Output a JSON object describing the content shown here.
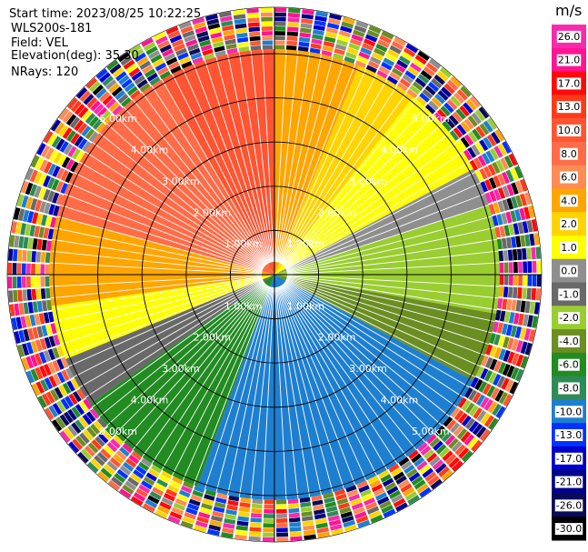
{
  "header": {
    "start_time": "Start time: 2023/08/25 10:22:25",
    "instrument": "WLS200s-181",
    "field": "Field: VEL",
    "elevation": "Elevation(deg): 35.30",
    "nrays": "NRays: 120"
  },
  "colorbar": {
    "unit": "m/s",
    "bins": [
      {
        "label": "26.0",
        "color": "#f72bac"
      },
      {
        "label": "21.0",
        "color": "#ff1493"
      },
      {
        "label": "17.0",
        "color": "#ff0a0a"
      },
      {
        "label": "13.0",
        "color": "#ff3a1a"
      },
      {
        "label": "10.0",
        "color": "#ff5533"
      },
      {
        "label": "8.0",
        "color": "#ff6c47"
      },
      {
        "label": "6.0",
        "color": "#ff8c55"
      },
      {
        "label": "4.0",
        "color": "#ffa500"
      },
      {
        "label": "2.0",
        "color": "#ffd400"
      },
      {
        "label": "1.0",
        "color": "#ffff00"
      },
      {
        "label": "0.0",
        "color": "#8f8f8f"
      },
      {
        "label": "-1.0",
        "color": "#696969"
      },
      {
        "label": "-2.0",
        "color": "#9acd32"
      },
      {
        "label": "-4.0",
        "color": "#6b8e23"
      },
      {
        "label": "-6.0",
        "color": "#228b22"
      },
      {
        "label": "-8.0",
        "color": "#2e8b57"
      },
      {
        "label": "-10.0",
        "color": "#1e7fd0"
      },
      {
        "label": "-13.0",
        "color": "#0033ff"
      },
      {
        "label": "-17.0",
        "color": "#0000cd"
      },
      {
        "label": "-21.0",
        "color": "#00008b"
      },
      {
        "label": "-26.0",
        "color": "#0a0a5a"
      },
      {
        "label": "-30.0",
        "color": "#000000"
      }
    ]
  },
  "chart_data": {
    "type": "heatmap",
    "projection": "polar",
    "field": "VEL",
    "nrays": 120,
    "range_rings_km": [
      1,
      2,
      3,
      4,
      5
    ],
    "ring_label_text": [
      "1.00km",
      "2.00km",
      "3.00km",
      "4.00km",
      "5.00km"
    ],
    "max_range_km": 6.05,
    "sectors": [
      {
        "from_deg": 0,
        "to_deg": 22,
        "color": "#ffa500"
      },
      {
        "from_deg": 22,
        "to_deg": 38,
        "color": "#ffd400"
      },
      {
        "from_deg": 38,
        "to_deg": 62,
        "color": "#ffff00"
      },
      {
        "from_deg": 62,
        "to_deg": 72,
        "color": "#8f8f8f"
      },
      {
        "from_deg": 72,
        "to_deg": 100,
        "color": "#9acd32"
      },
      {
        "from_deg": 100,
        "to_deg": 118,
        "color": "#6b8e23"
      },
      {
        "from_deg": 118,
        "to_deg": 150,
        "color": "#1e7fd0"
      },
      {
        "from_deg": 150,
        "to_deg": 200,
        "color": "#1e7fd0"
      },
      {
        "from_deg": 200,
        "to_deg": 235,
        "color": "#228b22"
      },
      {
        "from_deg": 235,
        "to_deg": 248,
        "color": "#696969"
      },
      {
        "from_deg": 248,
        "to_deg": 262,
        "color": "#ffff00"
      },
      {
        "from_deg": 262,
        "to_deg": 285,
        "color": "#ffa500"
      },
      {
        "from_deg": 285,
        "to_deg": 330,
        "color": "#ff6c47"
      },
      {
        "from_deg": 330,
        "to_deg": 360,
        "color": "#ff5533"
      }
    ],
    "noise_start_km": 5.1
  }
}
